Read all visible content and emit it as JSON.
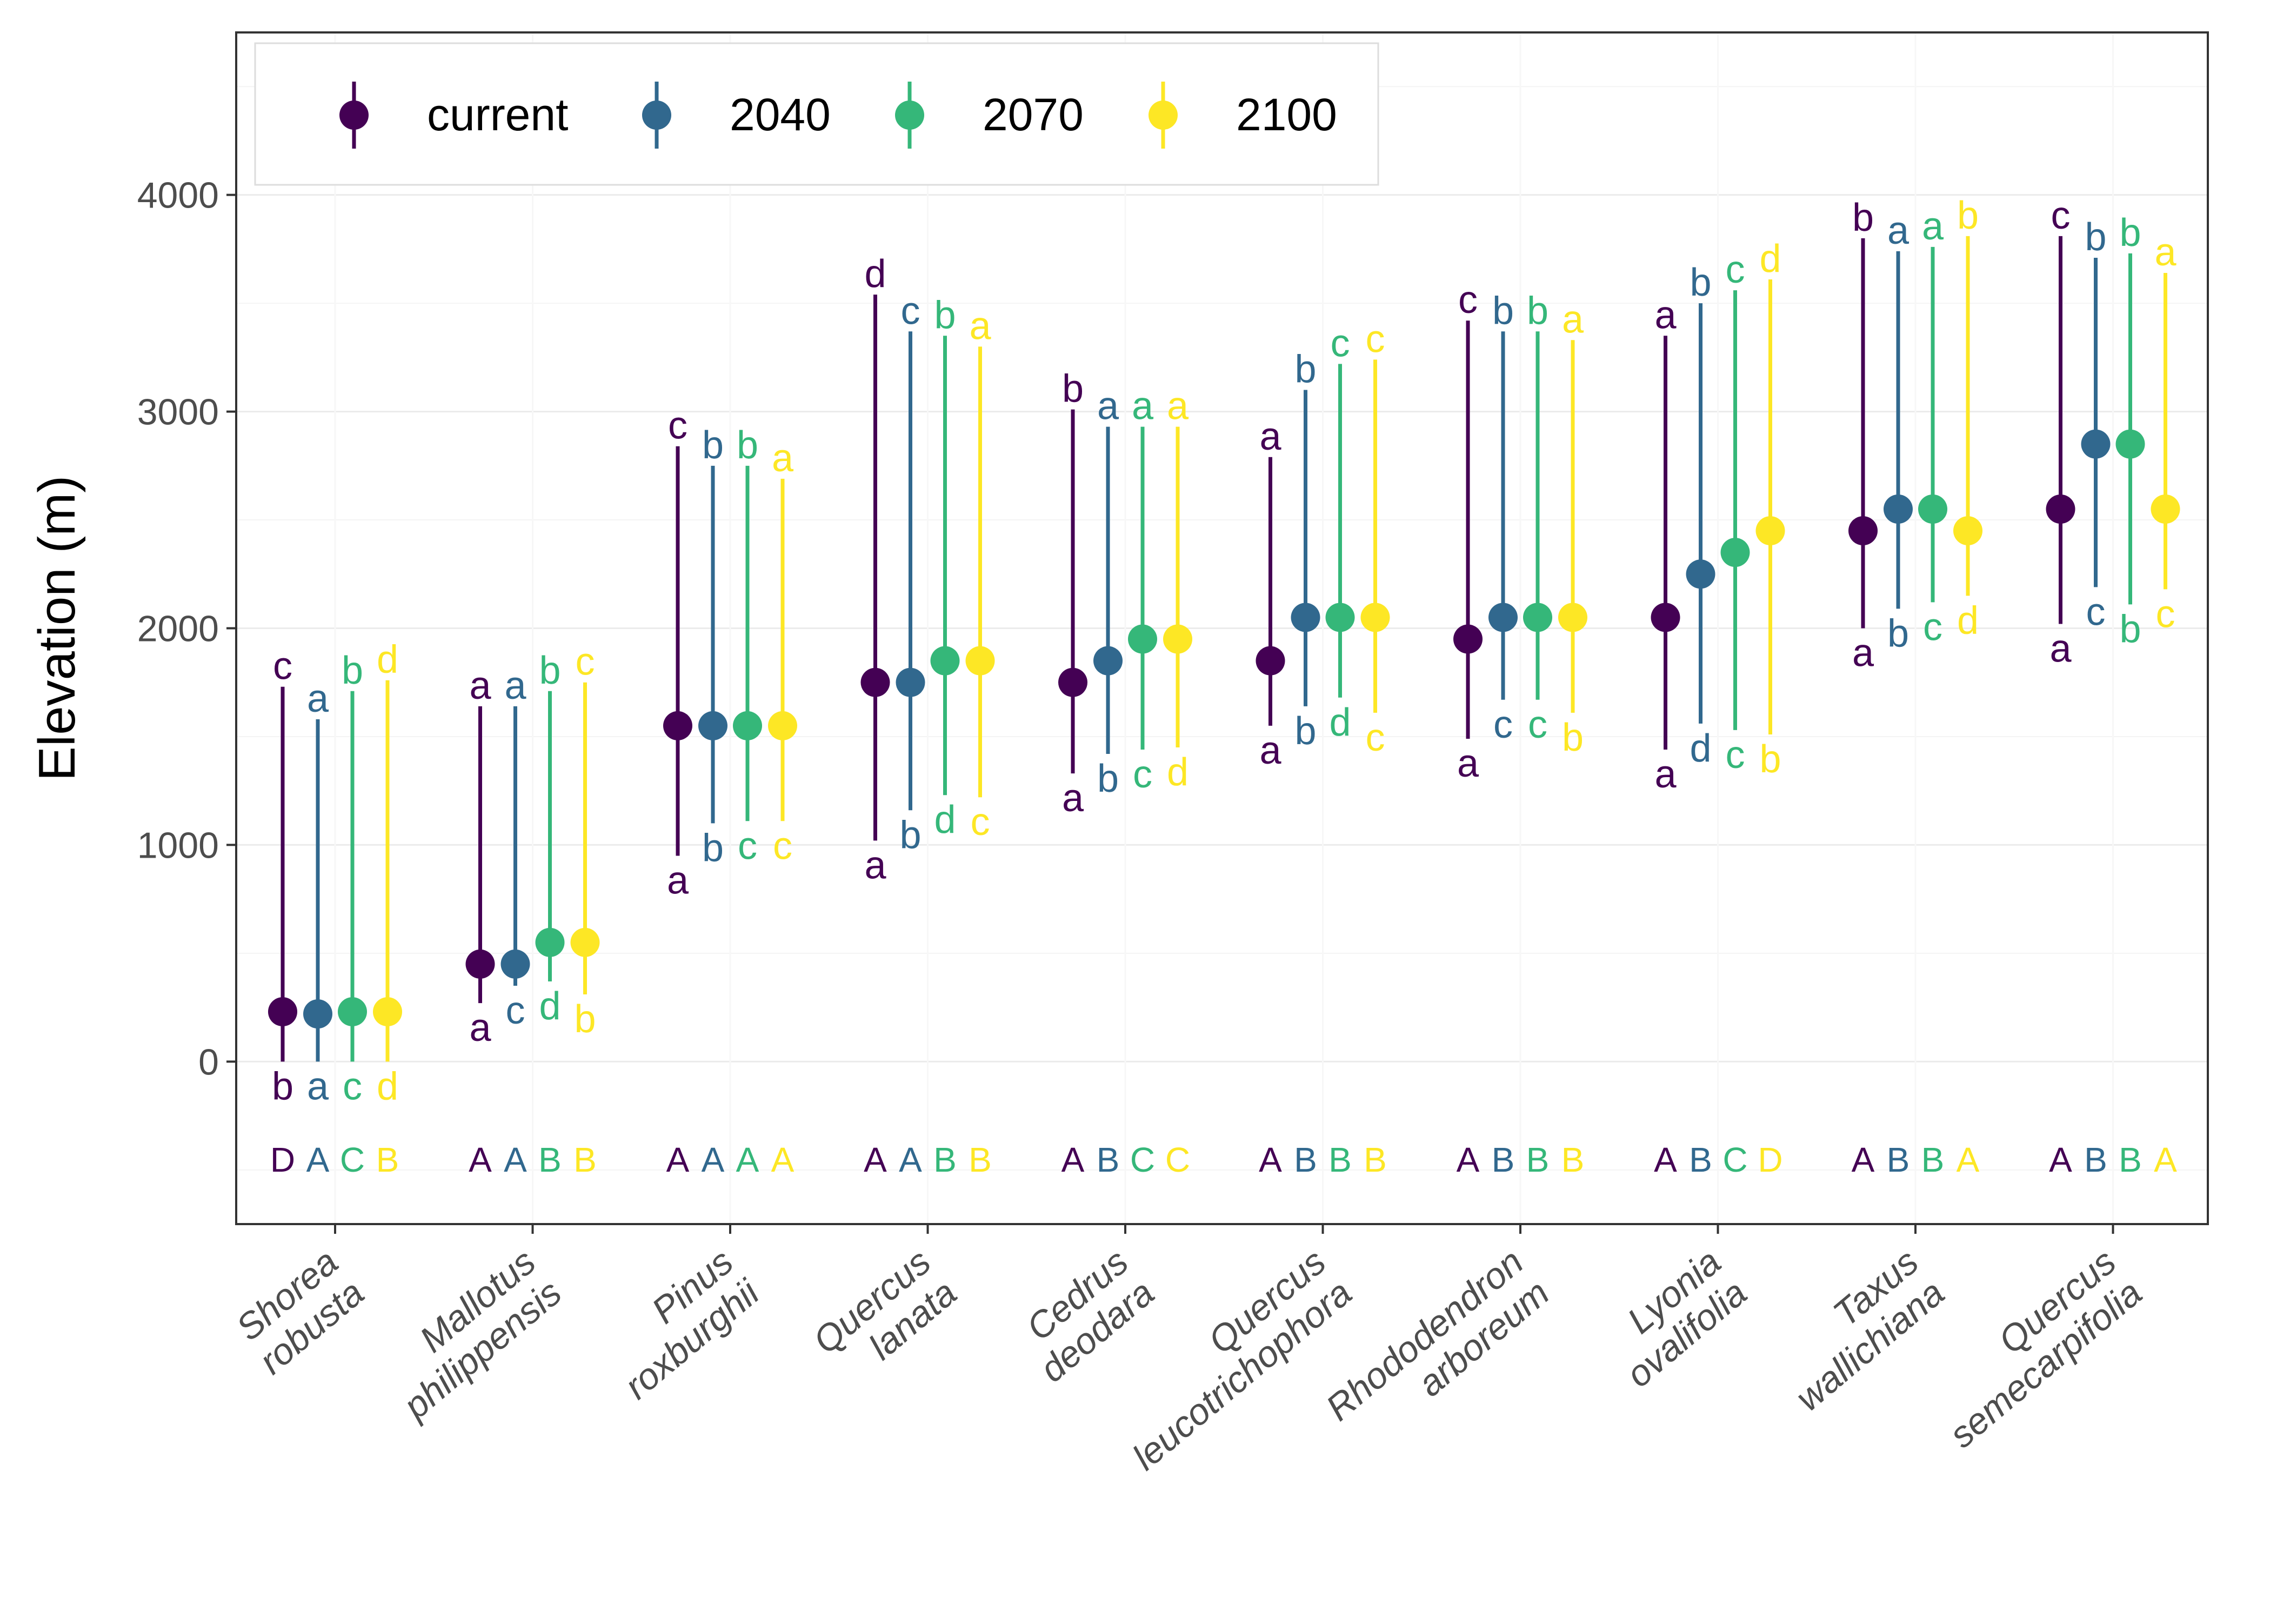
{
  "chart_data": {
    "type": "point-range",
    "title": "",
    "ylabel": "Elevation (m)",
    "xlabel": "",
    "ylim": [
      -750,
      4750
    ],
    "yticks": [
      0,
      1000,
      2000,
      3000,
      4000
    ],
    "grid": true,
    "legend_position": "top-left",
    "categories": [
      [
        "Shorea",
        "robusta"
      ],
      [
        "Mallotus",
        "philippensis"
      ],
      [
        "Pinus",
        "roxburghii"
      ],
      [
        "Quercus",
        "lanata"
      ],
      [
        "Cedrus",
        "deodara"
      ],
      [
        "Quercus",
        "leucotrichophora"
      ],
      [
        "Rhododendron",
        "arboreum"
      ],
      [
        "Lyonia",
        "ovalifolia"
      ],
      [
        "Taxus",
        "wallichiana"
      ],
      [
        "Quercus",
        "semecarpifolia"
      ]
    ],
    "series": [
      {
        "name": "current",
        "color": "#440154",
        "median": [
          230,
          450,
          1550,
          1750,
          1750,
          1850,
          1950,
          2050,
          2450,
          2550
        ],
        "low": [
          0,
          270,
          950,
          1020,
          1330,
          1550,
          1490,
          1440,
          2000,
          2020
        ],
        "high": [
          1730,
          1640,
          2840,
          3540,
          3010,
          2790,
          3420,
          3350,
          3800,
          3810
        ],
        "upper_letter": [
          "c",
          "a",
          "c",
          "d",
          "b",
          "a",
          "c",
          "a",
          "b",
          "c"
        ],
        "lower_letter": [
          "b",
          "a",
          "a",
          "a",
          "a",
          "a",
          "a",
          "a",
          "a",
          "a"
        ],
        "group_letter": [
          "D",
          "A",
          "A",
          "A",
          "A",
          "A",
          "A",
          "A",
          "A",
          "A"
        ]
      },
      {
        "name": "2040",
        "color": "#31688E",
        "median": [
          220,
          450,
          1550,
          1750,
          1850,
          2050,
          2050,
          2250,
          2550,
          2850
        ],
        "low": [
          0,
          350,
          1100,
          1160,
          1420,
          1640,
          1670,
          1560,
          2090,
          2190
        ],
        "high": [
          1580,
          1640,
          2750,
          3370,
          2930,
          3100,
          3370,
          3500,
          3740,
          3710
        ],
        "upper_letter": [
          "a",
          "a",
          "b",
          "c",
          "a",
          "b",
          "b",
          "b",
          "a",
          "b"
        ],
        "lower_letter": [
          "a",
          "c",
          "b",
          "b",
          "b",
          "b",
          "c",
          "d",
          "b",
          "c"
        ],
        "group_letter": [
          "A",
          "A",
          "A",
          "A",
          "B",
          "B",
          "B",
          "B",
          "B",
          "B"
        ]
      },
      {
        "name": "2070",
        "color": "#35B779",
        "median": [
          230,
          550,
          1550,
          1850,
          1950,
          2050,
          2050,
          2350,
          2550,
          2850
        ],
        "low": [
          0,
          370,
          1110,
          1230,
          1440,
          1680,
          1670,
          1530,
          2120,
          2110
        ],
        "high": [
          1710,
          1710,
          2750,
          3350,
          2930,
          3220,
          3370,
          3560,
          3760,
          3730
        ],
        "upper_letter": [
          "b",
          "b",
          "b",
          "b",
          "a",
          "c",
          "b",
          "c",
          "a",
          "b"
        ],
        "lower_letter": [
          "c",
          "d",
          "c",
          "d",
          "c",
          "d",
          "c",
          "c",
          "c",
          "b"
        ],
        "group_letter": [
          "C",
          "B",
          "A",
          "B",
          "C",
          "B",
          "B",
          "C",
          "B",
          "B"
        ]
      },
      {
        "name": "2100",
        "color": "#FDE725",
        "median": [
          230,
          550,
          1550,
          1850,
          1950,
          2050,
          2050,
          2450,
          2450,
          2550
        ],
        "low": [
          0,
          310,
          1110,
          1220,
          1450,
          1610,
          1610,
          1510,
          2150,
          2180
        ],
        "high": [
          1760,
          1750,
          2690,
          3300,
          2930,
          3240,
          3330,
          3610,
          3810,
          3640
        ],
        "upper_letter": [
          "d",
          "c",
          "a",
          "a",
          "a",
          "c",
          "a",
          "d",
          "b",
          "a"
        ],
        "lower_letter": [
          "d",
          "b",
          "c",
          "c",
          "d",
          "c",
          "b",
          "b",
          "d",
          "c"
        ],
        "group_letter": [
          "B",
          "B",
          "A",
          "B",
          "C",
          "B",
          "B",
          "D",
          "A",
          "A"
        ]
      }
    ]
  }
}
